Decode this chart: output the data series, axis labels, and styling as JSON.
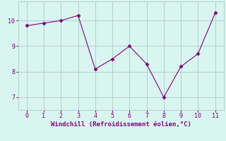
{
  "x": [
    0,
    1,
    2,
    3,
    4,
    5,
    6,
    7,
    8,
    9,
    10,
    11
  ],
  "y": [
    9.8,
    9.9,
    10.0,
    10.2,
    8.1,
    8.5,
    9.0,
    8.3,
    7.0,
    8.2,
    8.7,
    10.3
  ],
  "line_color": "#800080",
  "marker": "D",
  "marker_size": 2.5,
  "background_color": "#d8f5f0",
  "grid_color": "#b0c8c8",
  "xlabel": "Windchill (Refroidissement éolien,°C)",
  "xlabel_color": "#800080",
  "tick_color": "#800080",
  "xlim": [
    -0.5,
    11.5
  ],
  "ylim": [
    6.5,
    10.75
  ],
  "yticks": [
    7,
    8,
    9,
    10
  ],
  "xticks": [
    0,
    1,
    2,
    3,
    4,
    5,
    6,
    7,
    8,
    9,
    10,
    11
  ]
}
